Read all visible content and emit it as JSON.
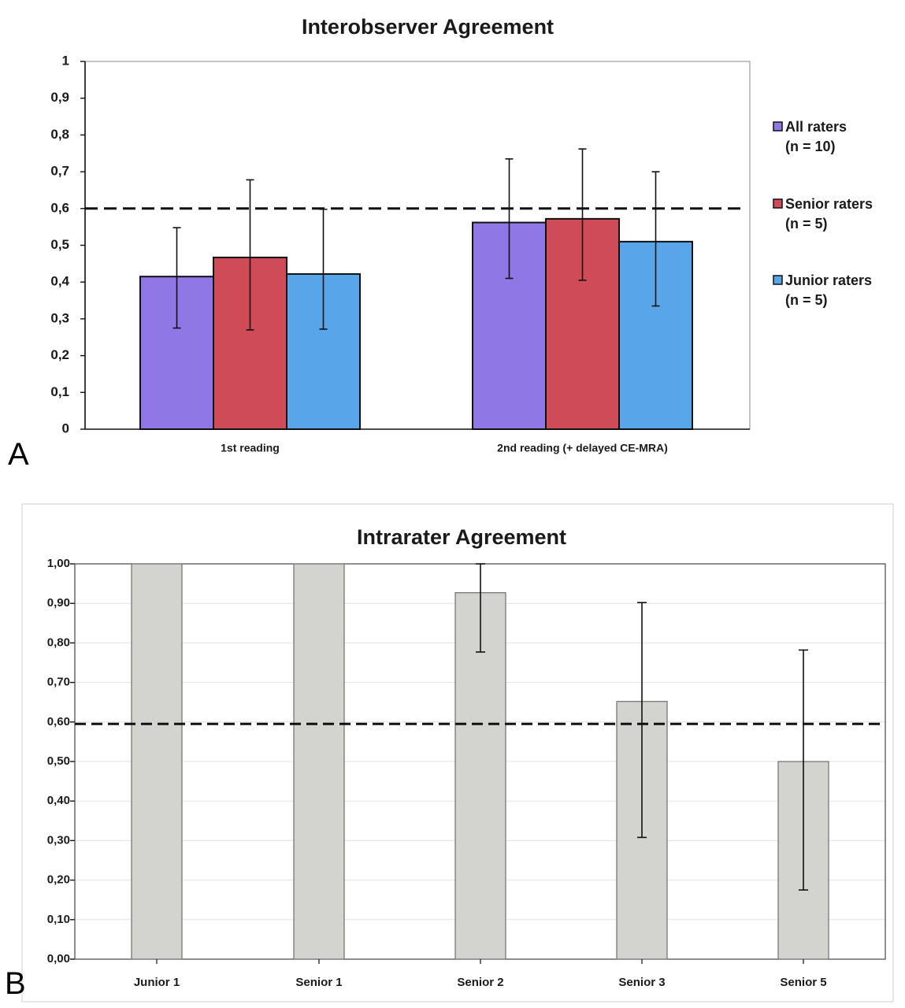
{
  "chart_data": [
    {
      "type": "bar",
      "panel_label": "A",
      "title": "Interobserver Agreement",
      "categories": [
        "1st reading",
        "2nd reading (+ delayed CE-MRA)"
      ],
      "series": [
        {
          "name": "All raters",
          "subtitle": "(n = 10)",
          "color": "#8f77e6",
          "values": [
            0.415,
            0.562
          ],
          "error_low": [
            0.275,
            0.41
          ],
          "error_high": [
            0.548,
            0.735
          ]
        },
        {
          "name": "Senior raters",
          "subtitle": "(n = 5)",
          "color": "#d04b58",
          "values": [
            0.467,
            0.572
          ],
          "error_low": [
            0.27,
            0.405
          ],
          "error_high": [
            0.678,
            0.762
          ]
        },
        {
          "name": "Junior raters",
          "subtitle": "(n = 5)",
          "color": "#59a5ea",
          "values": [
            0.422,
            0.51
          ],
          "error_low": [
            0.272,
            0.335
          ],
          "error_high": [
            0.598,
            0.7
          ]
        }
      ],
      "reference_line": 0.6,
      "ylim": [
        0,
        1
      ],
      "yticks": [
        "0",
        "0,1",
        "0,2",
        "0,3",
        "0,4",
        "0,5",
        "0,6",
        "0,7",
        "0,8",
        "0,9",
        "1"
      ],
      "grid": false,
      "legend": "right"
    },
    {
      "type": "bar",
      "panel_label": "B",
      "title": "Intrarater Agreement",
      "categories": [
        "Junior 1",
        "Senior 1",
        "Senior 2",
        "Senior 3",
        "Senior 5"
      ],
      "series": [
        {
          "color": "#d3d3d0",
          "values": [
            1.0,
            1.0,
            0.927,
            0.652,
            0.5
          ],
          "error_low": [
            null,
            null,
            0.777,
            0.308,
            0.175
          ],
          "error_high": [
            null,
            null,
            1.0,
            0.902,
            0.782
          ]
        }
      ],
      "reference_line": 0.595,
      "ylim": [
        0,
        1
      ],
      "yticks": [
        "0,00",
        "0,10",
        "0,20",
        "0,30",
        "0,40",
        "0,50",
        "0,60",
        "0,70",
        "0,80",
        "0,90",
        "1,00"
      ],
      "grid": true,
      "legend": "none"
    }
  ]
}
